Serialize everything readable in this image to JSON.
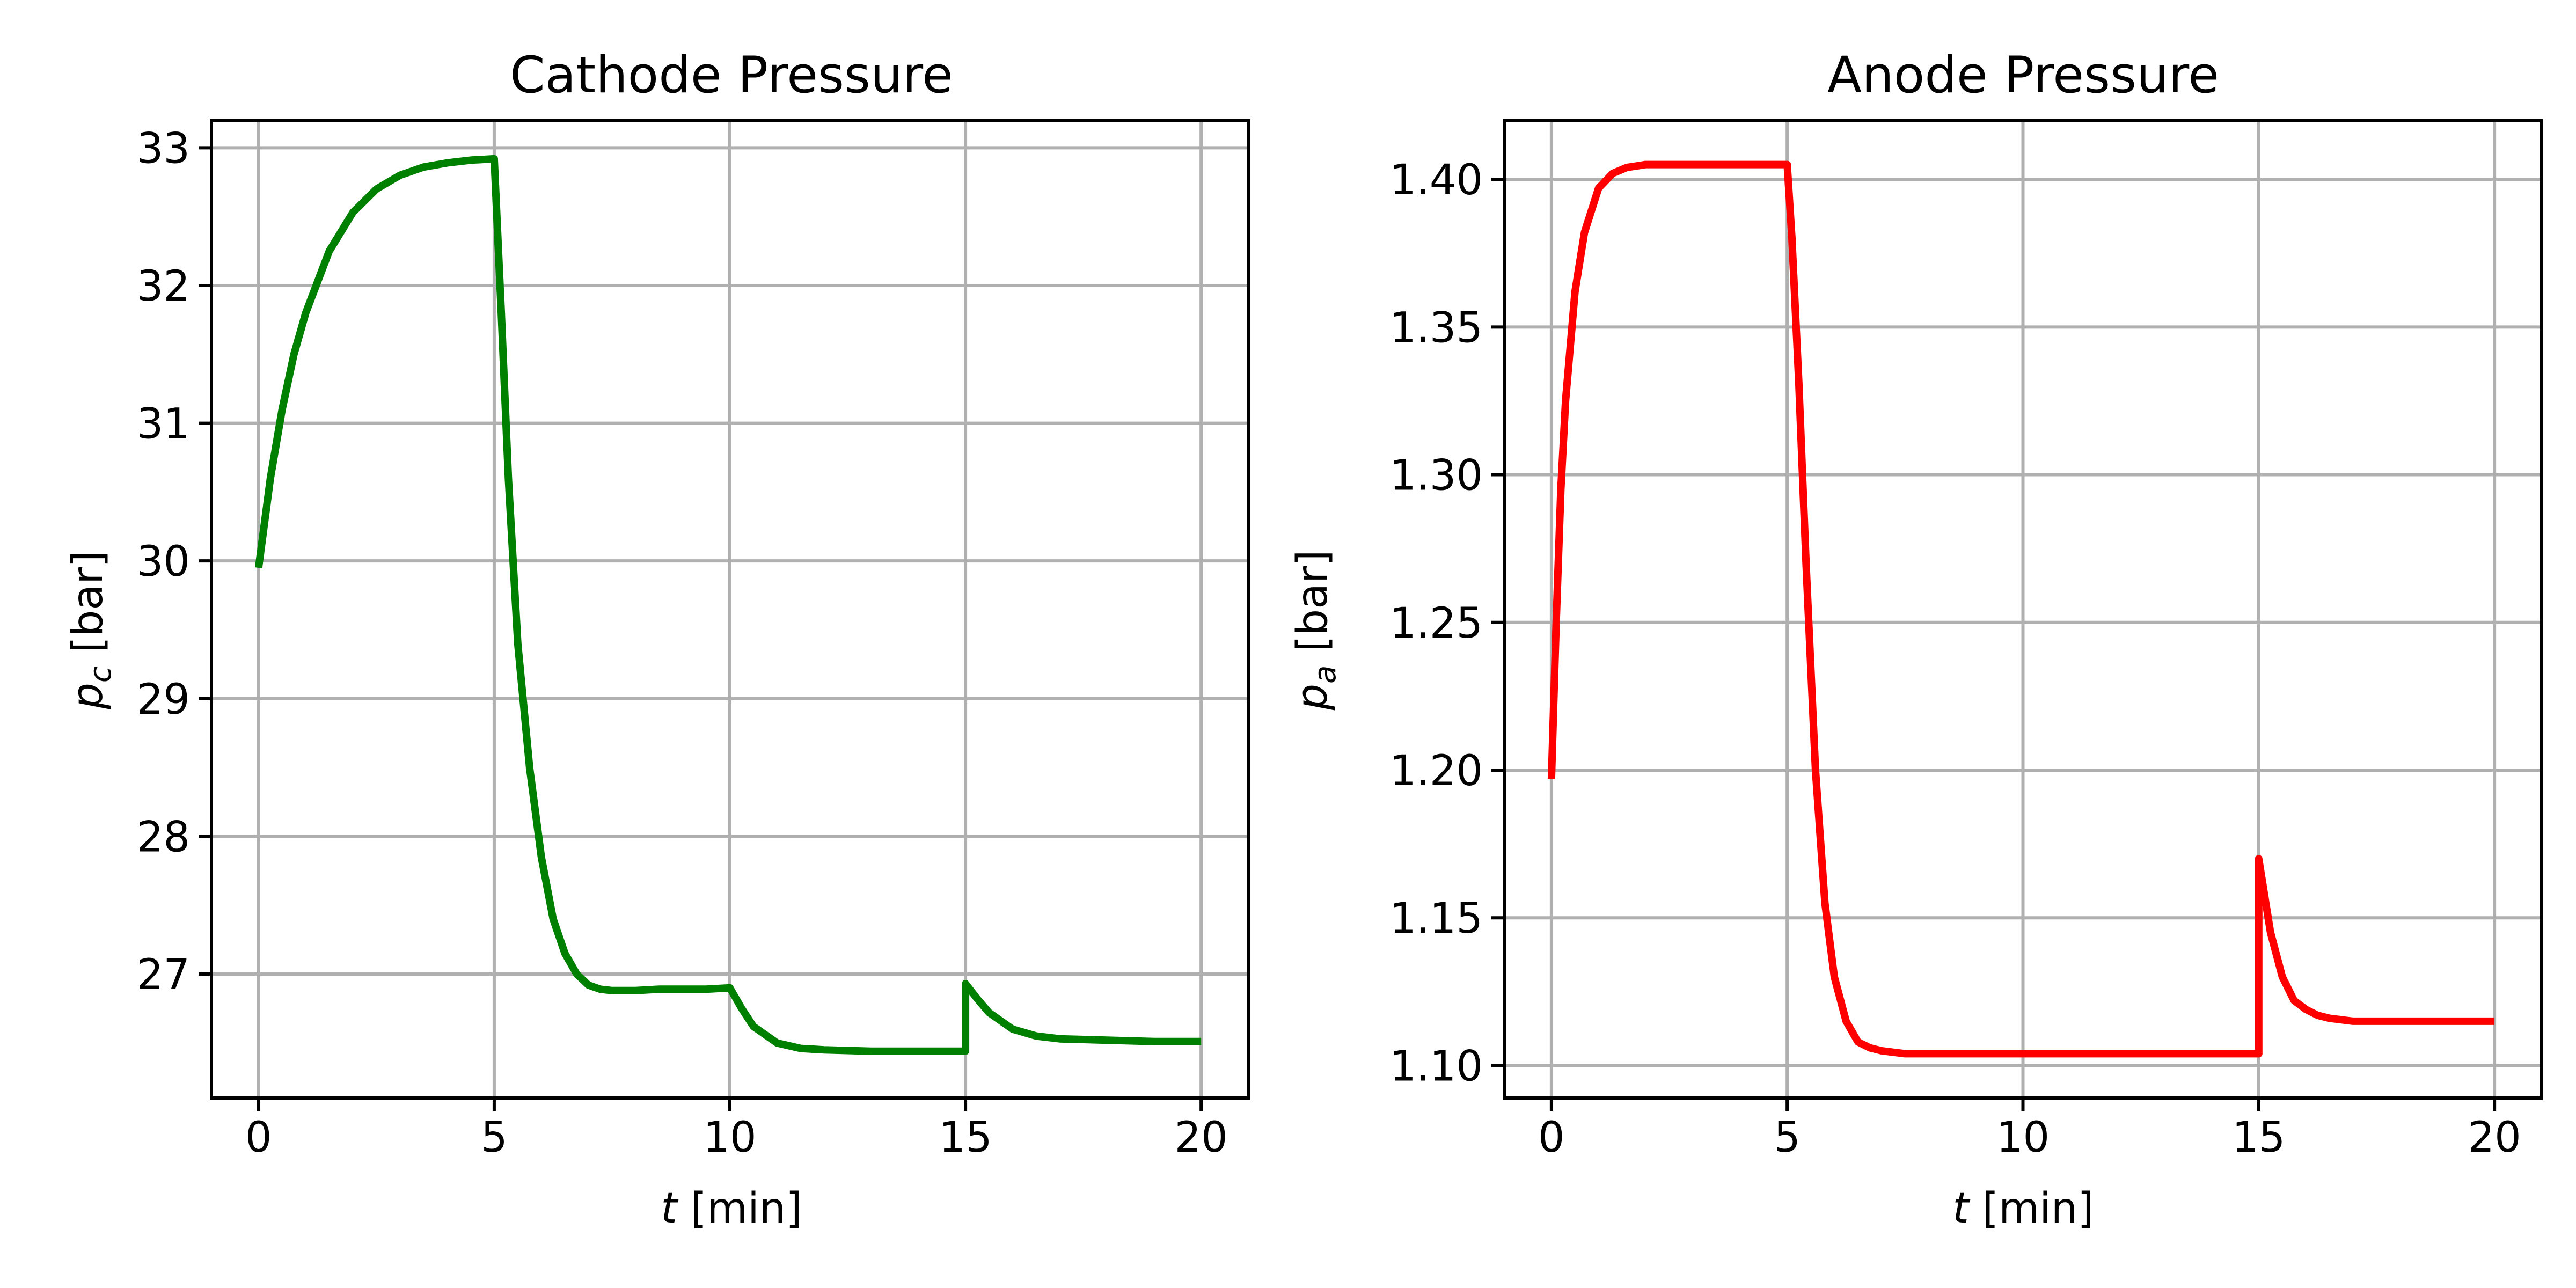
{
  "chart_data": [
    {
      "type": "line",
      "title": "Cathode Pressure",
      "xlabel": {
        "var": "t",
        "unit": " [min]"
      },
      "ylabel": {
        "var": "p",
        "sub": "c",
        "unit": " [bar]"
      },
      "xlim": [
        -1,
        21
      ],
      "ylim": [
        26.1,
        33.2
      ],
      "xticks": [
        0,
        5,
        10,
        15,
        20
      ],
      "yticks": [
        27,
        28,
        29,
        30,
        31,
        32,
        33
      ],
      "ytick_labels": [
        "27",
        "28",
        "29",
        "30",
        "31",
        "32",
        "33"
      ],
      "grid": true,
      "series": [
        {
          "color": "#008000",
          "x": [
            0,
            0.25,
            0.5,
            0.75,
            1,
            1.5,
            2,
            2.5,
            3,
            3.5,
            4,
            4.5,
            5,
            5.15,
            5.3,
            5.5,
            5.75,
            6,
            6.25,
            6.5,
            6.75,
            7,
            7.25,
            7.5,
            8,
            8.5,
            9,
            9.5,
            10,
            10.25,
            10.5,
            11,
            11.5,
            12,
            13,
            14,
            15,
            15,
            15.25,
            15.5,
            16,
            16.5,
            17,
            18,
            19,
            20
          ],
          "y": [
            29.95,
            30.6,
            31.1,
            31.5,
            31.8,
            32.25,
            32.53,
            32.7,
            32.8,
            32.86,
            32.89,
            32.91,
            32.92,
            31.8,
            30.6,
            29.4,
            28.5,
            27.85,
            27.4,
            27.15,
            27.0,
            26.92,
            26.89,
            26.88,
            26.88,
            26.89,
            26.89,
            26.89,
            26.9,
            26.75,
            26.62,
            26.5,
            26.46,
            26.45,
            26.44,
            26.44,
            26.44,
            26.93,
            26.82,
            26.72,
            26.6,
            26.55,
            26.53,
            26.52,
            26.51,
            26.51
          ]
        }
      ]
    },
    {
      "type": "line",
      "title": "Anode Pressure",
      "xlabel": {
        "var": "t",
        "unit": " [min]"
      },
      "ylabel": {
        "var": "p",
        "sub": "a",
        "unit": " [bar]"
      },
      "xlim": [
        -1,
        21
      ],
      "ylim": [
        1.089,
        1.42
      ],
      "xticks": [
        0,
        5,
        10,
        15,
        20
      ],
      "yticks": [
        1.1,
        1.15,
        1.2,
        1.25,
        1.3,
        1.35,
        1.4
      ],
      "ytick_labels": [
        "1.10",
        "1.15",
        "1.20",
        "1.25",
        "1.30",
        "1.35",
        "1.40"
      ],
      "grid": true,
      "series": [
        {
          "color": "#ff0000",
          "x": [
            0,
            0.1,
            0.2,
            0.3,
            0.5,
            0.7,
            1,
            1.3,
            1.6,
            2,
            2.5,
            3,
            4,
            5,
            5.1,
            5.25,
            5.4,
            5.6,
            5.8,
            6,
            6.25,
            6.5,
            6.75,
            7,
            7.5,
            8,
            9,
            10,
            11,
            12,
            13,
            14,
            15,
            15,
            15.1,
            15.25,
            15.5,
            15.75,
            16,
            16.25,
            16.5,
            17,
            18,
            19,
            20
          ],
          "y": [
            1.197,
            1.25,
            1.295,
            1.325,
            1.362,
            1.382,
            1.397,
            1.402,
            1.404,
            1.405,
            1.405,
            1.405,
            1.405,
            1.405,
            1.38,
            1.33,
            1.27,
            1.2,
            1.155,
            1.13,
            1.115,
            1.108,
            1.106,
            1.105,
            1.104,
            1.104,
            1.104,
            1.104,
            1.104,
            1.104,
            1.104,
            1.104,
            1.104,
            1.17,
            1.16,
            1.145,
            1.13,
            1.122,
            1.119,
            1.117,
            1.116,
            1.115,
            1.115,
            1.115,
            1.115
          ]
        }
      ]
    }
  ]
}
